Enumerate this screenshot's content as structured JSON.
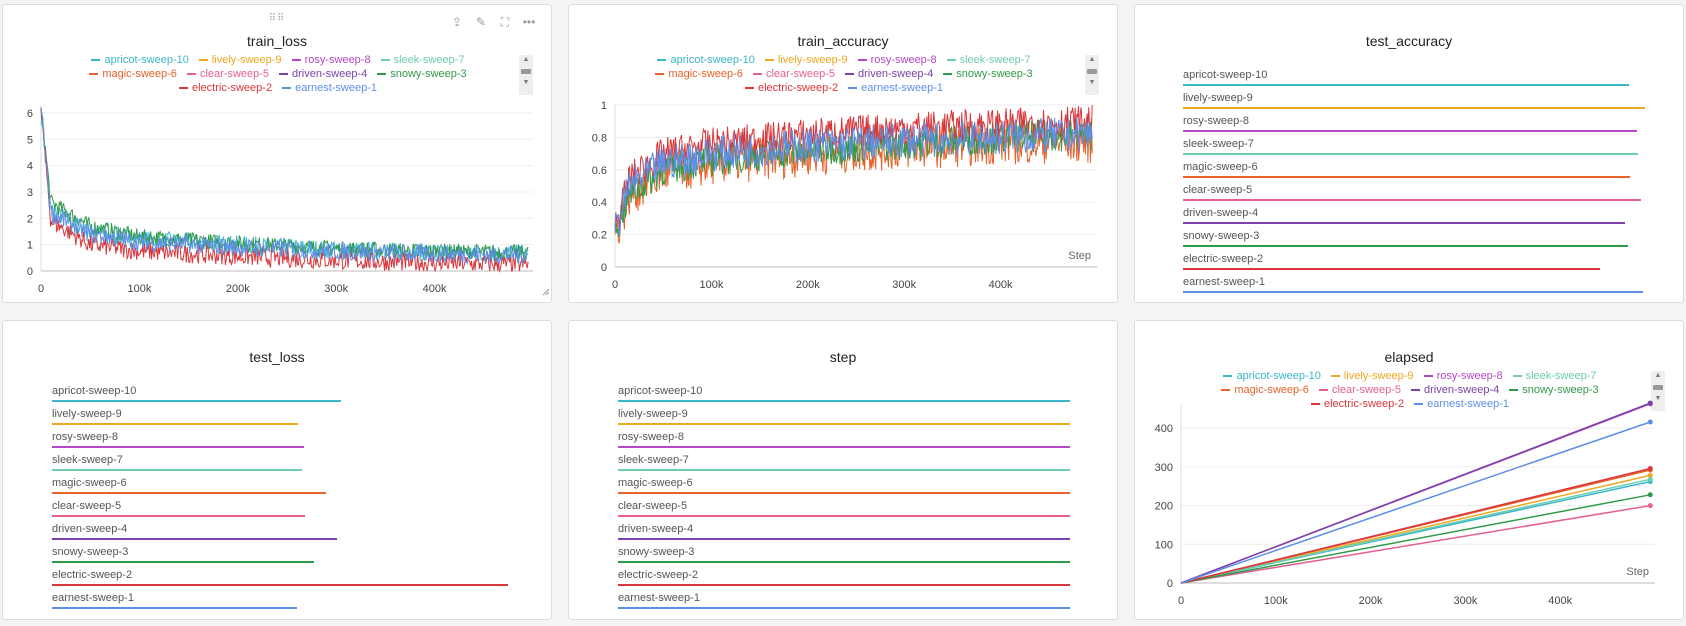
{
  "runs": [
    {
      "name": "apricot-sweep-10",
      "color": "#3cb6c9"
    },
    {
      "name": "lively-sweep-9",
      "color": "#f0a722"
    },
    {
      "name": "rosy-sweep-8",
      "color": "#b548c6"
    },
    {
      "name": "sleek-sweep-7",
      "color": "#6fcbb1"
    },
    {
      "name": "magic-sweep-6",
      "color": "#e8622a"
    },
    {
      "name": "clear-sweep-5",
      "color": "#e65f8e"
    },
    {
      "name": "driven-sweep-4",
      "color": "#7c41a8"
    },
    {
      "name": "snowy-sweep-3",
      "color": "#2f9a48"
    },
    {
      "name": "electric-sweep-2",
      "color": "#d9373b"
    },
    {
      "name": "earnest-sweep-1",
      "color": "#5d8ee5"
    }
  ],
  "toolbar": {
    "drag_icon": "⠿⠿",
    "share_icon": "⇪",
    "edit_icon": "✎",
    "fullscreen_icon": "⛶",
    "more_icon": "•••"
  },
  "step_label": "Step",
  "chart_data": [
    {
      "id": "train_loss",
      "type": "line",
      "title": "train_loss",
      "x_ticks": [
        "0",
        "100k",
        "200k",
        "300k",
        "400k"
      ],
      "y_ticks": [
        "0",
        "1",
        "2",
        "3",
        "4",
        "5",
        "6"
      ],
      "xlim": [
        0,
        500000
      ],
      "ylim": [
        0,
        6.3
      ],
      "series": [
        {
          "name": "apricot-sweep-10",
          "points": [
            [
              0,
              6.2
            ],
            [
              10000,
              2.3
            ],
            [
              50000,
              1.5
            ],
            [
              100000,
              1.2
            ],
            [
              200000,
              1.0
            ],
            [
              300000,
              0.8
            ],
            [
              400000,
              0.7
            ],
            [
              495000,
              0.65
            ]
          ],
          "noise": 0.35
        },
        {
          "name": "snowy-sweep-3",
          "points": [
            [
              0,
              6.2
            ],
            [
              10000,
              2.6
            ],
            [
              50000,
              1.7
            ],
            [
              100000,
              1.3
            ],
            [
              200000,
              1.05
            ],
            [
              300000,
              0.85
            ],
            [
              400000,
              0.75
            ],
            [
              495000,
              0.7
            ]
          ],
          "noise": 0.3
        },
        {
          "name": "electric-sweep-2",
          "points": [
            [
              0,
              6.2
            ],
            [
              10000,
              1.9
            ],
            [
              50000,
              1.0
            ],
            [
              100000,
              0.75
            ],
            [
              200000,
              0.55
            ],
            [
              300000,
              0.4
            ],
            [
              400000,
              0.3
            ],
            [
              495000,
              0.25
            ]
          ],
          "noise": 0.35
        },
        {
          "name": "earnest-sweep-1",
          "points": [
            [
              0,
              6.2
            ],
            [
              10000,
              2.2
            ],
            [
              50000,
              1.4
            ],
            [
              100000,
              1.1
            ],
            [
              200000,
              0.9
            ],
            [
              300000,
              0.75
            ],
            [
              400000,
              0.65
            ],
            [
              495000,
              0.6
            ]
          ],
          "noise": 0.35
        }
      ]
    },
    {
      "id": "train_accuracy",
      "type": "line",
      "title": "train_accuracy",
      "x_ticks": [
        "0",
        "100k",
        "200k",
        "300k",
        "400k"
      ],
      "y_ticks": [
        "0",
        "0.2",
        "0.4",
        "0.6",
        "0.8",
        "1"
      ],
      "xlim": [
        0,
        500000
      ],
      "ylim": [
        0,
        1
      ],
      "series": [
        {
          "name": "magic-sweep-6",
          "points": [
            [
              0,
              0.2
            ],
            [
              15000,
              0.45
            ],
            [
              50000,
              0.58
            ],
            [
              100000,
              0.64
            ],
            [
              200000,
              0.7
            ],
            [
              300000,
              0.74
            ],
            [
              400000,
              0.77
            ],
            [
              495000,
              0.78
            ]
          ],
          "noise": 0.14
        },
        {
          "name": "snowy-sweep-3",
          "points": [
            [
              0,
              0.22
            ],
            [
              15000,
              0.45
            ],
            [
              50000,
              0.6
            ],
            [
              100000,
              0.66
            ],
            [
              200000,
              0.72
            ],
            [
              300000,
              0.76
            ],
            [
              400000,
              0.8
            ],
            [
              495000,
              0.82
            ]
          ],
          "noise": 0.1
        },
        {
          "name": "electric-sweep-2",
          "points": [
            [
              0,
              0.25
            ],
            [
              15000,
              0.55
            ],
            [
              50000,
              0.7
            ],
            [
              100000,
              0.76
            ],
            [
              200000,
              0.82
            ],
            [
              300000,
              0.86
            ],
            [
              400000,
              0.88
            ],
            [
              495000,
              0.9
            ]
          ],
          "noise": 0.1
        },
        {
          "name": "earnest-sweep-1",
          "points": [
            [
              0,
              0.22
            ],
            [
              15000,
              0.5
            ],
            [
              50000,
              0.64
            ],
            [
              100000,
              0.7
            ],
            [
              200000,
              0.75
            ],
            [
              300000,
              0.78
            ],
            [
              400000,
              0.8
            ],
            [
              495000,
              0.82
            ]
          ],
          "noise": 0.11
        }
      ]
    },
    {
      "id": "test_accuracy",
      "type": "bar",
      "title": "test_accuracy",
      "categories": [
        "apricot-sweep-10",
        "lively-sweep-9",
        "rosy-sweep-8",
        "sleek-sweep-7",
        "magic-sweep-6",
        "clear-sweep-5",
        "driven-sweep-4",
        "snowy-sweep-3",
        "electric-sweep-2",
        "earnest-sweep-1"
      ],
      "values": [
        0.86,
        0.89,
        0.875,
        0.877,
        0.861,
        0.882,
        0.852,
        0.858,
        0.804,
        0.887
      ],
      "xlim": [
        0,
        0.89
      ]
    },
    {
      "id": "test_loss",
      "type": "bar",
      "title": "test_loss",
      "categories": [
        "apricot-sweep-10",
        "lively-sweep-9",
        "rosy-sweep-8",
        "sleek-sweep-7",
        "magic-sweep-6",
        "clear-sweep-5",
        "driven-sweep-4",
        "snowy-sweep-3",
        "electric-sweep-2",
        "earnest-sweep-1"
      ],
      "values": [
        0.57,
        0.485,
        0.497,
        0.493,
        0.54,
        0.499,
        0.562,
        0.517,
        0.9,
        0.484
      ],
      "xlim": [
        0,
        0.9
      ]
    },
    {
      "id": "step",
      "type": "bar",
      "title": "step",
      "categories": [
        "apricot-sweep-10",
        "lively-sweep-9",
        "rosy-sweep-8",
        "sleek-sweep-7",
        "magic-sweep-6",
        "clear-sweep-5",
        "driven-sweep-4",
        "snowy-sweep-3",
        "electric-sweep-2",
        "earnest-sweep-1"
      ],
      "values": [
        499999,
        499999,
        499999,
        499999,
        499999,
        499999,
        499999,
        499999,
        499999,
        499999
      ],
      "xlim": [
        0,
        499999
      ]
    },
    {
      "id": "elapsed",
      "type": "line",
      "title": "elapsed",
      "x_ticks": [
        "0",
        "100k",
        "200k",
        "300k",
        "400k"
      ],
      "y_ticks": [
        "0",
        "100",
        "200",
        "300",
        "400"
      ],
      "xlim": [
        0,
        500000
      ],
      "ylim": [
        0,
        460
      ],
      "series": [
        {
          "name": "apricot-sweep-10",
          "points": [
            [
              0,
              0
            ],
            [
              495000,
              262
            ]
          ]
        },
        {
          "name": "lively-sweep-9",
          "points": [
            [
              0,
              0
            ],
            [
              495000,
              278
            ]
          ]
        },
        {
          "name": "rosy-sweep-8",
          "points": [
            [
              0,
              0
            ],
            [
              495000,
              463
            ]
          ]
        },
        {
          "name": "sleek-sweep-7",
          "points": [
            [
              0,
              0
            ],
            [
              495000,
              268
            ]
          ]
        },
        {
          "name": "magic-sweep-6",
          "points": [
            [
              0,
              0
            ],
            [
              495000,
              292
            ]
          ]
        },
        {
          "name": "clear-sweep-5",
          "points": [
            [
              0,
              0
            ],
            [
              495000,
              200
            ]
          ]
        },
        {
          "name": "driven-sweep-4",
          "points": [
            [
              0,
              0
            ],
            [
              495000,
              465
            ]
          ]
        },
        {
          "name": "snowy-sweep-3",
          "points": [
            [
              0,
              0
            ],
            [
              495000,
              228
            ]
          ]
        },
        {
          "name": "electric-sweep-2",
          "points": [
            [
              0,
              0
            ],
            [
              495000,
              296
            ]
          ]
        },
        {
          "name": "earnest-sweep-1",
          "points": [
            [
              0,
              0
            ],
            [
              495000,
              416
            ]
          ]
        }
      ]
    }
  ]
}
